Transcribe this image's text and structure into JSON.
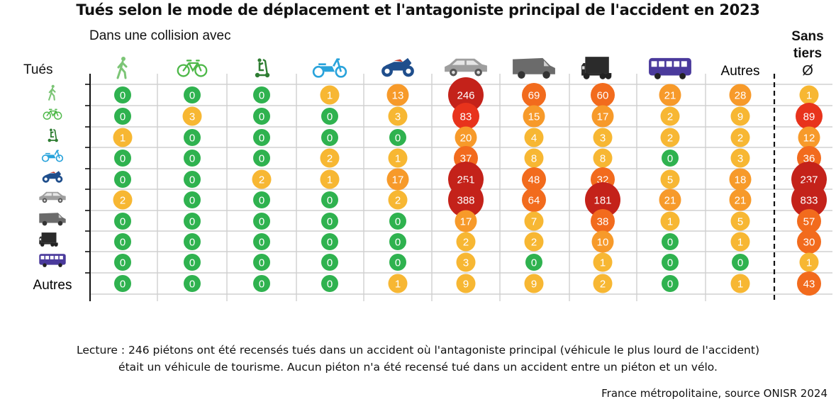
{
  "title": "Tués selon le mode de déplacement et l'antagoniste principal de l'accident en 2023",
  "subtitle": "Dans une collision avec",
  "row_header": "Tués",
  "sans_tiers": {
    "label_line1": "Sans",
    "label_line2": "tiers",
    "symbol": "Ø"
  },
  "note_line1": "Lecture : 246 piétons ont été recensés tués dans un accident où l'antagoniste principal (véhicule le plus lourd de l'accident)",
  "note_line2": "était un véhicule de tourisme. Aucun piéton n'a été recensé tué dans un accident entre un piéton et un vélo.",
  "source": "France métropolitaine, source ONISR 2024",
  "colors": {
    "green": "#2fb24f",
    "yellow": "#f7b733",
    "orange_light": "#f79a2a",
    "orange": "#f26b1d",
    "red": "#e8331c",
    "dark_red": "#c4221a",
    "pedestrian": "#7cc576",
    "bike": "#4db848",
    "scooter": "#2e7d32",
    "moped": "#29a3db",
    "moto": "#1f4e8c",
    "car": "#9e9e9e",
    "van": "#6b6b6b",
    "truck": "#2b2b2b",
    "bus": "#4a3a9c"
  },
  "chart_data": {
    "type": "bubble-matrix",
    "title": "Tués selon le mode de déplacement et l'antagoniste principal de l'accident en 2023",
    "row_label": "Tués",
    "column_label": "Dans une collision avec",
    "columns": [
      {
        "icon": "pedestrian-icon"
      },
      {
        "icon": "bicycle-icon"
      },
      {
        "icon": "scooter-icon"
      },
      {
        "icon": "moped-icon"
      },
      {
        "icon": "motorcycle-icon"
      },
      {
        "icon": "car-icon"
      },
      {
        "icon": "van-icon"
      },
      {
        "icon": "truck-icon"
      },
      {
        "icon": "bus-icon"
      },
      {
        "label": "Autres"
      },
      {
        "label": "Sans tiers Ø"
      }
    ],
    "rows": [
      {
        "icon": "pedestrian-icon"
      },
      {
        "icon": "bicycle-icon"
      },
      {
        "icon": "scooter-icon"
      },
      {
        "icon": "moped-icon"
      },
      {
        "icon": "motorcycle-icon"
      },
      {
        "icon": "car-icon"
      },
      {
        "icon": "van-icon"
      },
      {
        "icon": "truck-icon"
      },
      {
        "icon": "bus-icon"
      },
      {
        "label": "Autres"
      }
    ],
    "values": [
      [
        0,
        0,
        0,
        1,
        13,
        246,
        69,
        60,
        21,
        28,
        1
      ],
      [
        0,
        3,
        0,
        0,
        3,
        83,
        15,
        17,
        2,
        9,
        89
      ],
      [
        1,
        0,
        0,
        0,
        0,
        20,
        4,
        3,
        2,
        2,
        12
      ],
      [
        0,
        0,
        0,
        2,
        1,
        37,
        8,
        8,
        0,
        3,
        36
      ],
      [
        0,
        0,
        2,
        1,
        17,
        251,
        48,
        32,
        5,
        18,
        237
      ],
      [
        2,
        0,
        0,
        0,
        2,
        388,
        64,
        181,
        21,
        21,
        833
      ],
      [
        0,
        0,
        0,
        0,
        0,
        17,
        7,
        38,
        1,
        5,
        57
      ],
      [
        0,
        0,
        0,
        0,
        0,
        2,
        2,
        10,
        0,
        1,
        30
      ],
      [
        0,
        0,
        0,
        0,
        0,
        3,
        0,
        1,
        0,
        0,
        1
      ],
      [
        0,
        0,
        0,
        0,
        1,
        9,
        9,
        2,
        0,
        1,
        43
      ]
    ],
    "grid": true
  }
}
